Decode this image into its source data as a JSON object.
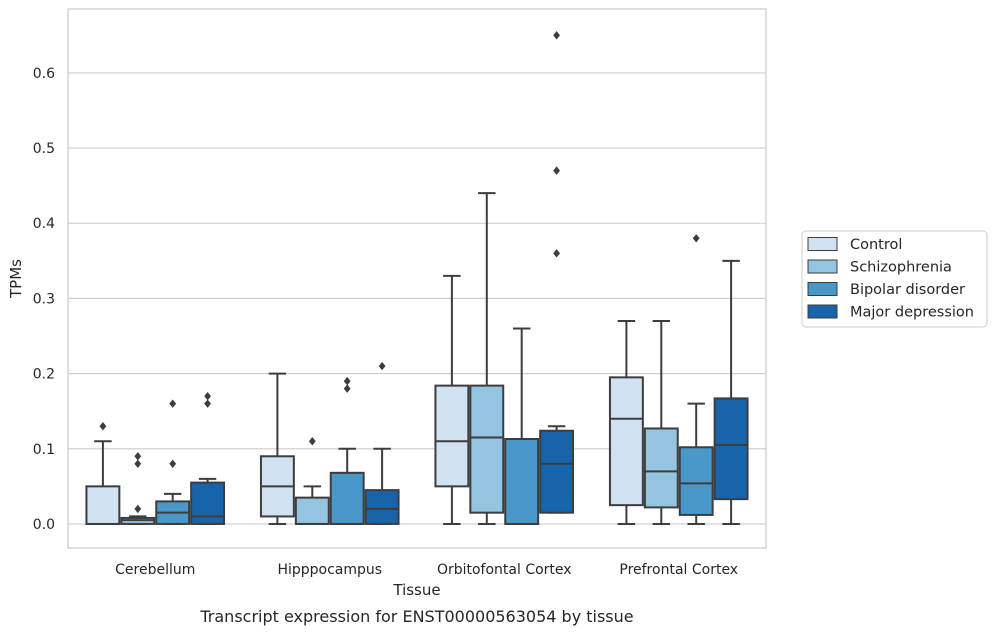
{
  "chart_data": {
    "type": "boxplot",
    "caption": "Transcript expression for ENST00000563054 by tissue",
    "xlabel": "Tissue",
    "ylabel": "TPMs",
    "ylim": [
      -0.032,
      0.685
    ],
    "yticks": [
      0.0,
      0.1,
      0.2,
      0.3,
      0.4,
      0.5,
      0.6
    ],
    "ytick_labels": [
      "0.0",
      "0.1",
      "0.2",
      "0.3",
      "0.4",
      "0.5",
      "0.6"
    ],
    "grid": "horizontal",
    "legend_position": "right",
    "categories": [
      "Cerebellum",
      "Hipppocampus",
      "Orbitofontal Cortex",
      "Prefrontal Cortex"
    ],
    "series": [
      {
        "name": "Control",
        "color": "#d0e1f2",
        "boxes": [
          {
            "min": 0.0,
            "q1": 0.0,
            "median": 0.0,
            "q3": 0.05,
            "max": 0.11,
            "outliers": [
              0.13
            ]
          },
          {
            "min": 0.0,
            "q1": 0.01,
            "median": 0.05,
            "q3": 0.09,
            "max": 0.2,
            "outliers": []
          },
          {
            "min": 0.0,
            "q1": 0.05,
            "median": 0.11,
            "q3": 0.184,
            "max": 0.33,
            "outliers": []
          },
          {
            "min": 0.0,
            "q1": 0.025,
            "median": 0.14,
            "q3": 0.195,
            "max": 0.27,
            "outliers": []
          }
        ]
      },
      {
        "name": "Schizophrenia",
        "color": "#94c4df",
        "boxes": [
          {
            "min": 0.0,
            "q1": 0.0,
            "median": 0.005,
            "q3": 0.008,
            "max": 0.01,
            "outliers": [
              0.02,
              0.08,
              0.09
            ]
          },
          {
            "min": 0.0,
            "q1": 0.0,
            "median": 0.0,
            "q3": 0.035,
            "max": 0.05,
            "outliers": [
              0.11
            ]
          },
          {
            "min": 0.0,
            "q1": 0.015,
            "median": 0.115,
            "q3": 0.184,
            "max": 0.44,
            "outliers": []
          },
          {
            "min": 0.0,
            "q1": 0.022,
            "median": 0.07,
            "q3": 0.127,
            "max": 0.27,
            "outliers": []
          }
        ]
      },
      {
        "name": "Bipolar disorder",
        "color": "#4a98c9",
        "boxes": [
          {
            "min": 0.0,
            "q1": 0.0,
            "median": 0.015,
            "q3": 0.03,
            "max": 0.04,
            "outliers": [
              0.08,
              0.16
            ]
          },
          {
            "min": 0.0,
            "q1": 0.0,
            "median": 0.0,
            "q3": 0.068,
            "max": 0.1,
            "outliers": [
              0.18,
              0.19
            ]
          },
          {
            "min": 0.0,
            "q1": 0.0,
            "median": 0.0,
            "q3": 0.113,
            "max": 0.26,
            "outliers": []
          },
          {
            "min": 0.0,
            "q1": 0.012,
            "median": 0.054,
            "q3": 0.102,
            "max": 0.16,
            "outliers": [
              0.38
            ]
          }
        ]
      },
      {
        "name": "Major depression",
        "color": "#1764ab",
        "boxes": [
          {
            "min": 0.0,
            "q1": 0.0,
            "median": 0.01,
            "q3": 0.055,
            "max": 0.06,
            "outliers": [
              0.16,
              0.17
            ]
          },
          {
            "min": 0.0,
            "q1": 0.0,
            "median": 0.02,
            "q3": 0.045,
            "max": 0.1,
            "outliers": [
              0.21
            ]
          },
          {
            "min": 0.015,
            "q1": 0.015,
            "median": 0.08,
            "q3": 0.124,
            "max": 0.13,
            "outliers": [
              0.36,
              0.47,
              0.65
            ]
          },
          {
            "min": 0.0,
            "q1": 0.033,
            "median": 0.105,
            "q3": 0.167,
            "max": 0.35,
            "outliers": []
          }
        ]
      }
    ]
  }
}
